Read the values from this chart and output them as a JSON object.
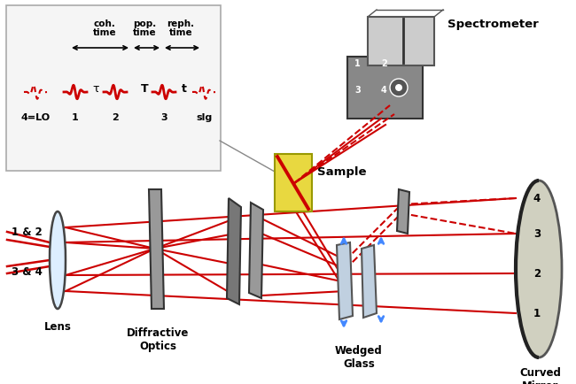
{
  "bg_color": "#ffffff",
  "fig_width": 6.5,
  "fig_height": 4.35,
  "dpi": 100,
  "labels": {
    "spectrometer": "Spectrometer",
    "sample": "Sample",
    "lens": "Lens",
    "diffractive_optics": "Diffractive\nOptics",
    "wedged_glass": "Wedged\nGlass",
    "curved_mirror": "Curved\nMirror",
    "beam12": "1 & 2",
    "beam34": "3 & 4",
    "coh_time": "coh.\ntime",
    "pop_time": "pop.\ntime",
    "reph_time": "reph.\ntime",
    "pulse4": "4=LO",
    "pulse1": "1",
    "pulse2": "2",
    "pulse3": "3",
    "pulse_slg": "slg",
    "tau": "τ",
    "T_label": "T",
    "t_label": "t",
    "beam4_num": "4",
    "beam3_num": "3",
    "beam2_num": "2",
    "beam1_num": "1"
  },
  "colors": {
    "red": "#cc0000",
    "blue": "#4488ff",
    "dark_gray": "#444444",
    "mid_gray": "#888888",
    "light_gray": "#bbbbbb",
    "box_bg": "#f2f2f2",
    "sample_yellow": "#ede060",
    "mirror_fill": "#d0d0d0",
    "optic_dark": "#666666",
    "optic_light": "#aaaaaa",
    "spectrometer_light": "#cccccc",
    "spectrometer_dark": "#888888"
  }
}
